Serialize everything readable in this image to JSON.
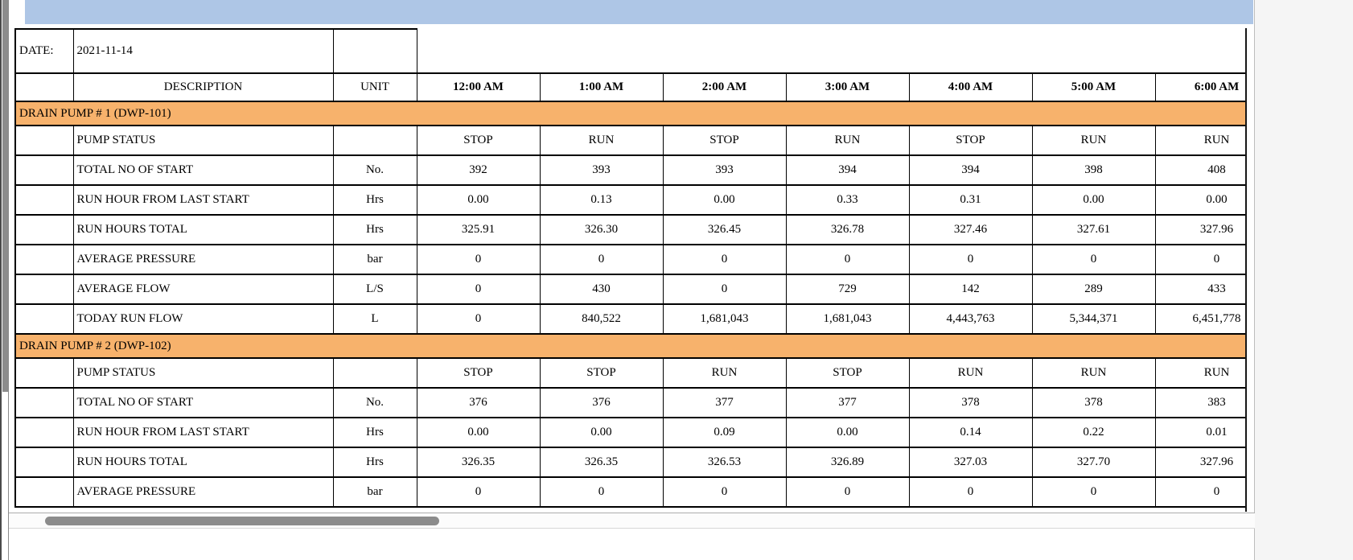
{
  "window": {
    "band_color": "#AEC6E6",
    "section_color": "#F7B26C",
    "scrollbar_thumb_color": "#8C8C8C"
  },
  "report": {
    "date_label": "DATE:",
    "date_value": "2021-11-14",
    "description_header": "DESCRIPTION",
    "unit_header": "UNIT",
    "time_columns": [
      "12:00 AM",
      "1:00 AM",
      "2:00 AM",
      "3:00 AM",
      "4:00 AM",
      "5:00 AM",
      "6:00 AM"
    ],
    "sections": [
      {
        "title": "DRAIN PUMP # 1 (DWP-101)",
        "rows": [
          {
            "description": "PUMP STATUS",
            "unit": "",
            "values": [
              "STOP",
              "RUN",
              "STOP",
              "RUN",
              "STOP",
              "RUN",
              "RUN"
            ]
          },
          {
            "description": "TOTAL NO OF START",
            "unit": "No.",
            "values": [
              "392",
              "393",
              "393",
              "394",
              "394",
              "398",
              "408"
            ]
          },
          {
            "description": "RUN HOUR FROM LAST START",
            "unit": "Hrs",
            "values": [
              "0.00",
              "0.13",
              "0.00",
              "0.33",
              "0.31",
              "0.00",
              "0.00"
            ]
          },
          {
            "description": "RUN HOURS TOTAL",
            "unit": "Hrs",
            "values": [
              "325.91",
              "326.30",
              "326.45",
              "326.78",
              "327.46",
              "327.61",
              "327.96"
            ]
          },
          {
            "description": "AVERAGE PRESSURE",
            "unit": "bar",
            "values": [
              "0",
              "0",
              "0",
              "0",
              "0",
              "0",
              "0"
            ]
          },
          {
            "description": "AVERAGE FLOW",
            "unit": "L/S",
            "values": [
              "0",
              "430",
              "0",
              "729",
              "142",
              "289",
              "433"
            ]
          },
          {
            "description": "TODAY RUN FLOW",
            "unit": "L",
            "values": [
              "0",
              "840,522",
              "1,681,043",
              "1,681,043",
              "4,443,763",
              "5,344,371",
              "6,451,778"
            ]
          }
        ]
      },
      {
        "title": "DRAIN PUMP # 2 (DWP-102)",
        "rows": [
          {
            "description": "PUMP STATUS",
            "unit": "",
            "values": [
              "STOP",
              "STOP",
              "RUN",
              "STOP",
              "RUN",
              "RUN",
              "RUN"
            ]
          },
          {
            "description": "TOTAL NO OF START",
            "unit": "No.",
            "values": [
              "376",
              "376",
              "377",
              "377",
              "378",
              "378",
              "383"
            ]
          },
          {
            "description": "RUN HOUR FROM LAST START",
            "unit": "Hrs",
            "values": [
              "0.00",
              "0.00",
              "0.09",
              "0.00",
              "0.14",
              "0.22",
              "0.01"
            ]
          },
          {
            "description": "RUN HOURS TOTAL",
            "unit": "Hrs",
            "values": [
              "326.35",
              "326.35",
              "326.53",
              "326.89",
              "327.03",
              "327.70",
              "327.96"
            ]
          },
          {
            "description": "AVERAGE PRESSURE",
            "unit": "bar",
            "values": [
              "0",
              "0",
              "0",
              "0",
              "0",
              "0",
              "0"
            ]
          }
        ]
      }
    ]
  }
}
